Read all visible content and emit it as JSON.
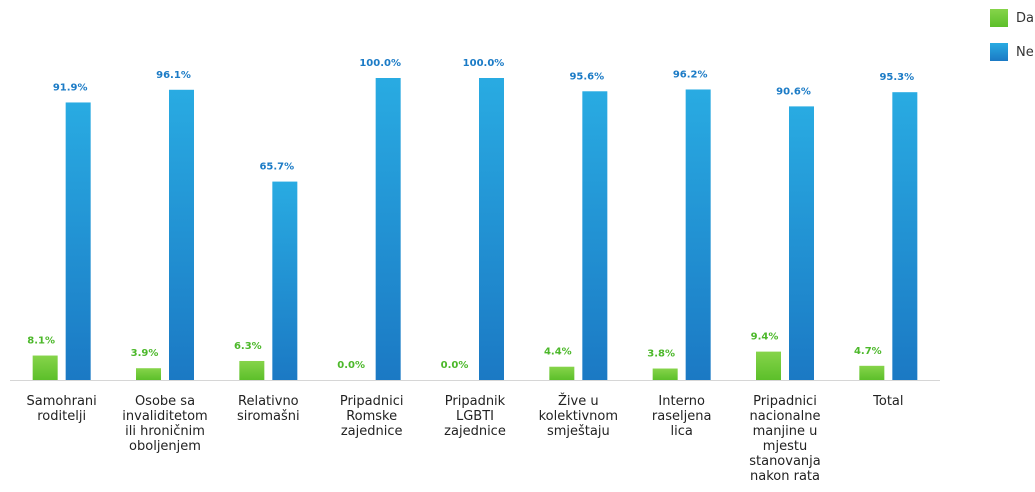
{
  "chart_data": {
    "type": "bar",
    "categories": [
      [
        "Samohrani",
        "roditelji"
      ],
      [
        "Osobe sa",
        "invaliditetom",
        "ili hroničnim",
        "oboljenjem"
      ],
      [
        "Relativno",
        "siromašni"
      ],
      [
        "Pripadnici",
        "Romske",
        "zajednice"
      ],
      [
        "Pripadnik",
        "LGBTI",
        "zajednice"
      ],
      [
        "Žive u",
        "kolektivnom",
        "smještaju"
      ],
      [
        "Interno",
        "raseljena",
        "lica"
      ],
      [
        "Pripadnici",
        "nacionalne",
        "manjine u",
        "mjestu",
        "stanovanja",
        "nakon rata"
      ],
      [
        "Total"
      ]
    ],
    "series": [
      {
        "name": "Da",
        "values": [
          8.1,
          3.9,
          6.3,
          0.0,
          0.0,
          4.4,
          3.8,
          9.4,
          4.7
        ],
        "labels": [
          "8.1%",
          "3.9%",
          "6.3%",
          "0.0%",
          "0.0%",
          "4.4%",
          "3.8%",
          "9.4%",
          "4.7%"
        ],
        "color": "#5cbf2a",
        "color_light": "#86d44a",
        "label_color": "#4cb82a"
      },
      {
        "name": "Ne",
        "values": [
          91.9,
          96.1,
          65.7,
          100.0,
          100.0,
          95.6,
          96.2,
          90.6,
          95.3
        ],
        "labels": [
          "91.9%",
          "96.1%",
          "65.7%",
          "100.0%",
          "100.0%",
          "95.6%",
          "96.2%",
          "90.6%",
          "95.3%"
        ],
        "color": "#1b79c4",
        "color_light": "#29abe2",
        "label_color": "#1b7bc6"
      }
    ],
    "ylim": [
      0,
      100
    ],
    "grid": false,
    "legend_position": "top-right"
  }
}
